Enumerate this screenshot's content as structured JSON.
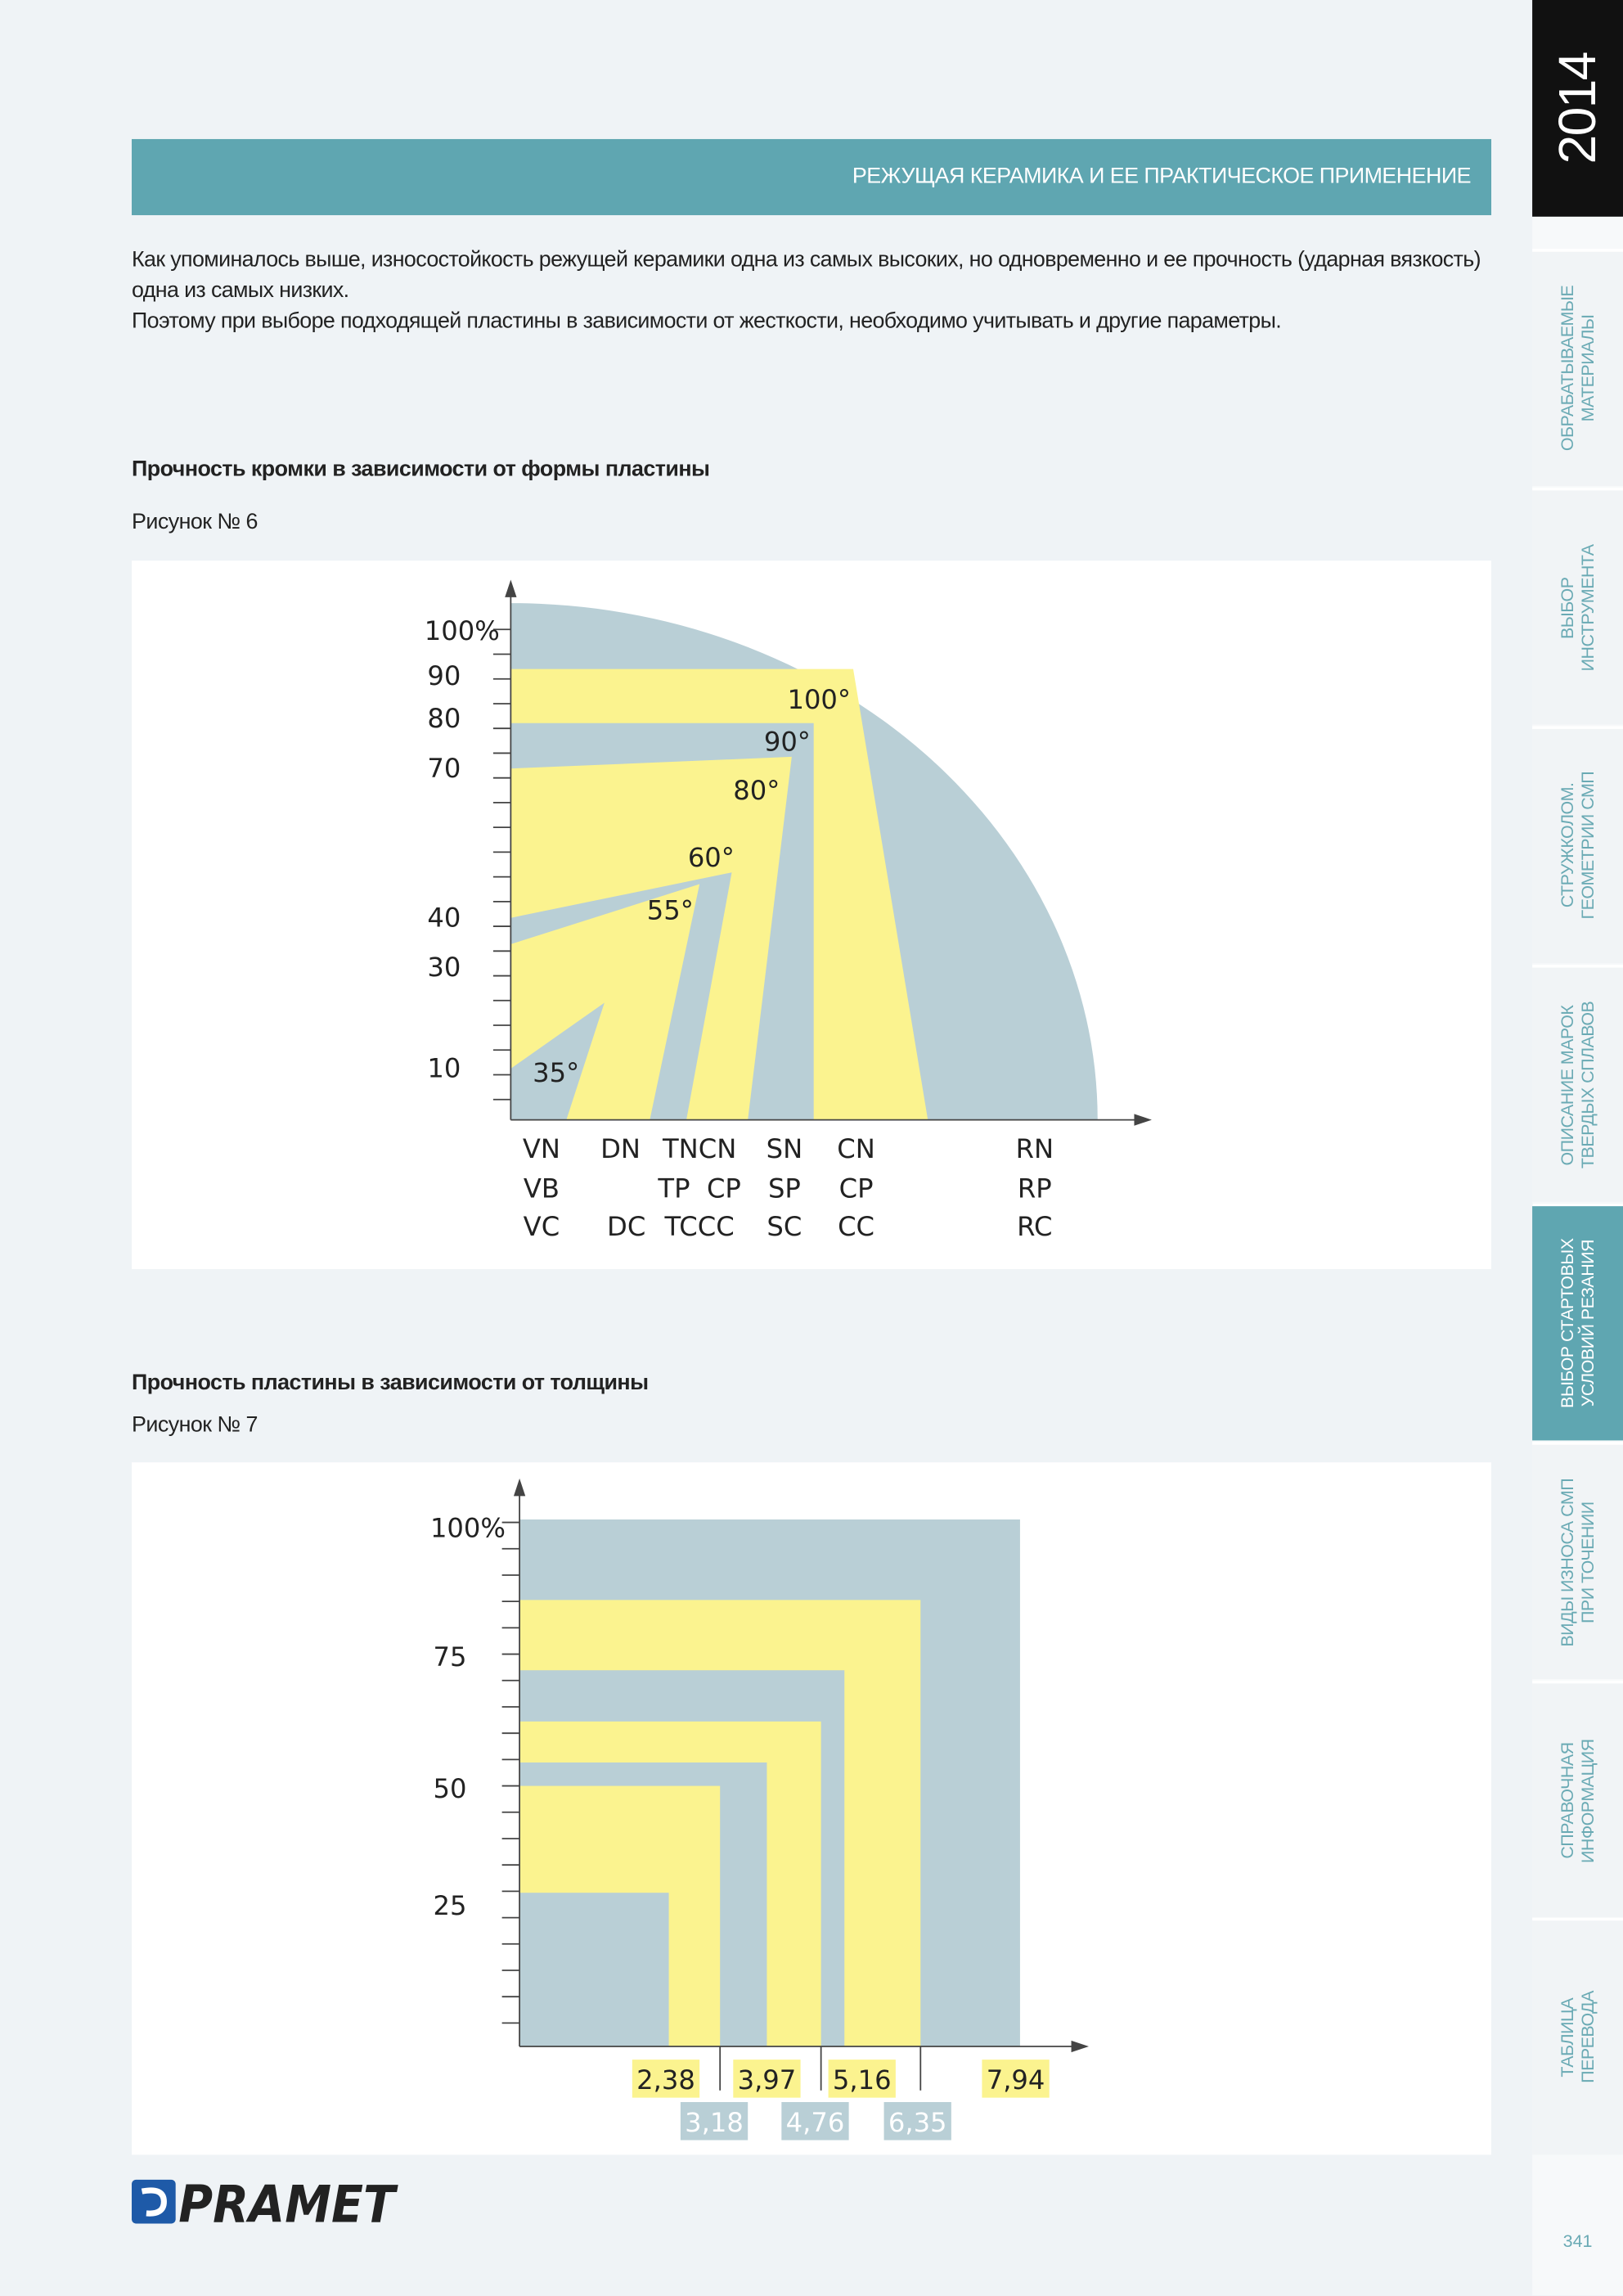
{
  "sidebar": {
    "year": "2014",
    "tabs": [
      [
        "ОБРАБАТЫВАЕМЫЕ",
        "МАТЕРИАЛЫ"
      ],
      [
        "ВЫБОР",
        "ИНСТРУМЕНТА"
      ],
      [
        "СТРУЖКОЛОМ.",
        "ГЕОМЕТРИИ СМП"
      ],
      [
        "ОПИСАНИЕ МАРОК",
        "ТВЕРДЫХ СПЛАВОВ"
      ],
      [
        "ВЫБОР СТАРТОВЫХ",
        "УСЛОВИЙ РЕЗАНИЯ"
      ],
      [
        "ВИДЫ ИЗНОСА СМП",
        "ПРИ ТОЧЕНИИ"
      ],
      [
        "СПРАВОЧНАЯ",
        "ИНФОРМАЦИЯ"
      ],
      [
        "ТАБЛИЦА",
        "ПЕРЕВОДА"
      ]
    ],
    "page_number": "341"
  },
  "header": {
    "title": "РЕЖУЩАЯ КЕРАМИКА И ЕЕ ПРАКТИЧЕСКОЕ ПРИМЕНЕНИЕ"
  },
  "intro": [
    "Как упоминалось выше, износостойкость режущей керамики одна из самых высоких, но одновременно и ее прочность (ударная вязкость) одна из самых низких.",
    "Поэтому при выборе подходящей пластины в зависимости от жесткости, необходимо учитывать и другие параметры."
  ],
  "figure6": {
    "title": "Прочность кромки в зависимости от формы пластины",
    "caption": "Рисунок № 6",
    "y_labels": [
      "100%",
      "90",
      "80",
      "70",
      "40",
      "30",
      "10"
    ],
    "angles": [
      "100°",
      "90°",
      "80°",
      "60°",
      "55°",
      "35°"
    ],
    "columns": [
      [
        "VN",
        "VB",
        "VC"
      ],
      [
        "DN",
        "DC"
      ],
      [
        "TNCN",
        "TP  CP",
        "TCCC"
      ],
      [
        "SN",
        "SP",
        "SC"
      ],
      [
        "CN",
        "CP",
        "CC"
      ],
      [
        "RN",
        "RP",
        "RC"
      ]
    ]
  },
  "figure7": {
    "title": "Прочность пластины в зависимости от толщины",
    "caption": "Рисунок № 7",
    "y_labels": [
      "100%",
      "75",
      "50",
      "25"
    ],
    "thickness_top": [
      "2,38",
      "3,97",
      "5,16",
      "7,94"
    ],
    "thickness_bottom": [
      "3,18",
      "4,76",
      "6,35"
    ]
  },
  "footer": {
    "logo": "PRAMET"
  }
}
